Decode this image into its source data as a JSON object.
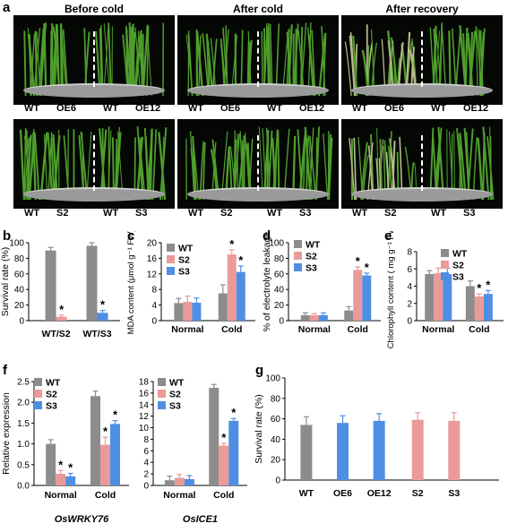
{
  "figure": {
    "panel_labels": [
      "a",
      "b",
      "c",
      "d",
      "e",
      "f",
      "g"
    ],
    "photo_columns": [
      "Before cold",
      "After cold",
      "After recovery"
    ],
    "photo_rows": [
      {
        "pairs": [
          [
            "WT",
            "OE6"
          ],
          [
            "WT",
            "OE12"
          ]
        ]
      },
      {
        "pairs": [
          [
            "WT",
            "S2"
          ],
          [
            "WT",
            "S3"
          ]
        ]
      }
    ],
    "colors": {
      "WT": "#8c8c8c",
      "S2": "#e99a99",
      "S3": "#4f8fe3",
      "OE": "#4f8fe3"
    }
  },
  "chart_data": [
    {
      "id": "b",
      "type": "bar",
      "ylabel": "Survival rate (%)",
      "ylim": [
        0,
        100
      ],
      "yticks": [
        0,
        20,
        40,
        60,
        80,
        100
      ],
      "groups": [
        {
          "label": "WT/S2",
          "bars": [
            {
              "series": "WT",
              "value": 90,
              "err": 4
            },
            {
              "series": "S2",
              "value": 5,
              "err": 2,
              "star": true
            }
          ]
        },
        {
          "label": "WT/S3",
          "bars": [
            {
              "series": "WT",
              "value": 96,
              "err": 4
            },
            {
              "series": "S3",
              "value": 10,
              "err": 3,
              "star": true
            }
          ]
        }
      ]
    },
    {
      "id": "c",
      "type": "bar",
      "ylabel": "MDA content (μmol g⁻¹ FW)",
      "ylim": [
        0,
        20
      ],
      "yticks": [
        0,
        4,
        8,
        12,
        16,
        20
      ],
      "legend": [
        "WT",
        "S2",
        "S3"
      ],
      "groups": [
        {
          "label": "Normal",
          "bars": [
            {
              "series": "WT",
              "value": 4.5,
              "err": 1.2
            },
            {
              "series": "S2",
              "value": 4.8,
              "err": 1.5
            },
            {
              "series": "S3",
              "value": 4.6,
              "err": 1.2
            }
          ]
        },
        {
          "label": "Cold",
          "bars": [
            {
              "series": "WT",
              "value": 7.0,
              "err": 2.2
            },
            {
              "series": "S2",
              "value": 17.0,
              "err": 1.2,
              "star": true
            },
            {
              "series": "S3",
              "value": 12.5,
              "err": 1.5,
              "star": true
            }
          ]
        }
      ]
    },
    {
      "id": "d",
      "type": "bar",
      "ylabel": "% of electrolyte leakage",
      "ylim": [
        0,
        100
      ],
      "yticks": [
        0,
        20,
        40,
        60,
        80,
        100
      ],
      "legend": [
        "WT",
        "S2",
        "S3"
      ],
      "groups": [
        {
          "label": "Normal",
          "bars": [
            {
              "series": "WT",
              "value": 7,
              "err": 3
            },
            {
              "series": "S2",
              "value": 7,
              "err": 2
            },
            {
              "series": "S3",
              "value": 7,
              "err": 3
            }
          ]
        },
        {
          "label": "Cold",
          "bars": [
            {
              "series": "WT",
              "value": 13,
              "err": 5
            },
            {
              "series": "S2",
              "value": 65,
              "err": 4,
              "star": true
            },
            {
              "series": "S3",
              "value": 58,
              "err": 3,
              "star": true
            }
          ]
        }
      ]
    },
    {
      "id": "e",
      "type": "bar",
      "ylabel": "Chlorophyll content ( mg g⁻¹ FW)",
      "ylim": [
        0,
        8
      ],
      "yticks": [
        0,
        2,
        4,
        6,
        8
      ],
      "legend": [
        "WT",
        "S2",
        "S3"
      ],
      "groups": [
        {
          "label": "Normal",
          "bars": [
            {
              "series": "WT",
              "value": 5.4,
              "err": 0.4
            },
            {
              "series": "S2",
              "value": 5.5,
              "err": 0.6
            },
            {
              "series": "S3",
              "value": 5.4,
              "err": 0.7
            }
          ]
        },
        {
          "label": "Cold",
          "bars": [
            {
              "series": "WT",
              "value": 4.0,
              "err": 0.6
            },
            {
              "series": "S2",
              "value": 2.8,
              "err": 0.3,
              "star": true
            },
            {
              "series": "S3",
              "value": 3.1,
              "err": 0.4,
              "star": true
            }
          ]
        }
      ]
    },
    {
      "id": "f1",
      "type": "bar",
      "ylabel": "Relative expression",
      "ylim": [
        0,
        2.5
      ],
      "yticks": [
        0.0,
        0.5,
        1.0,
        1.5,
        2.0,
        2.5
      ],
      "tickdecimals": 1,
      "legend": [
        "WT",
        "S2",
        "S3"
      ],
      "gene": "OsWRKY76",
      "groups": [
        {
          "label": "Normal",
          "bars": [
            {
              "series": "WT",
              "value": 1.0,
              "err": 0.1
            },
            {
              "series": "S2",
              "value": 0.28,
              "err": 0.08,
              "star": true
            },
            {
              "series": "S3",
              "value": 0.22,
              "err": 0.07,
              "star": true
            }
          ]
        },
        {
          "label": "Cold",
          "bars": [
            {
              "series": "WT",
              "value": 2.15,
              "err": 0.12
            },
            {
              "series": "S2",
              "value": 0.98,
              "err": 0.18,
              "star": true
            },
            {
              "series": "S3",
              "value": 1.48,
              "err": 0.08,
              "star": true
            }
          ]
        }
      ]
    },
    {
      "id": "f2",
      "type": "bar",
      "ylabel": "",
      "ylim": [
        0,
        18
      ],
      "yticks": [
        0,
        2,
        4,
        6,
        8,
        10,
        12,
        14,
        16,
        18
      ],
      "legend": [
        "WT",
        "S2",
        "S3"
      ],
      "gene": "OsICE1",
      "groups": [
        {
          "label": "Normal",
          "bars": [
            {
              "series": "WT",
              "value": 0.9,
              "err": 0.7
            },
            {
              "series": "S2",
              "value": 1.3,
              "err": 0.6
            },
            {
              "series": "S3",
              "value": 1.1,
              "err": 0.6
            }
          ]
        },
        {
          "label": "Cold",
          "bars": [
            {
              "series": "WT",
              "value": 16.9,
              "err": 0.6
            },
            {
              "series": "S2",
              "value": 6.9,
              "err": 0.4,
              "star": true
            },
            {
              "series": "S3",
              "value": 11.2,
              "err": 0.4,
              "star": true
            }
          ]
        }
      ]
    },
    {
      "id": "g",
      "type": "bar",
      "ylabel": "Survival rate (%)",
      "ylim": [
        0,
        100
      ],
      "yticks": [
        0,
        20,
        40,
        60,
        80,
        100
      ],
      "groups": [
        {
          "label": "WT",
          "bars": [
            {
              "series": "WT",
              "value": 54,
              "err": 8
            }
          ]
        },
        {
          "label": "OE6",
          "bars": [
            {
              "series": "OE",
              "value": 56,
              "err": 7
            }
          ]
        },
        {
          "label": "OE12",
          "bars": [
            {
              "series": "OE",
              "value": 58,
              "err": 7
            }
          ]
        },
        {
          "label": "S2",
          "bars": [
            {
              "series": "S2",
              "value": 59,
              "err": 7
            }
          ]
        },
        {
          "label": "S3",
          "bars": [
            {
              "series": "S2",
              "value": 58,
              "err": 8
            }
          ]
        }
      ]
    }
  ]
}
